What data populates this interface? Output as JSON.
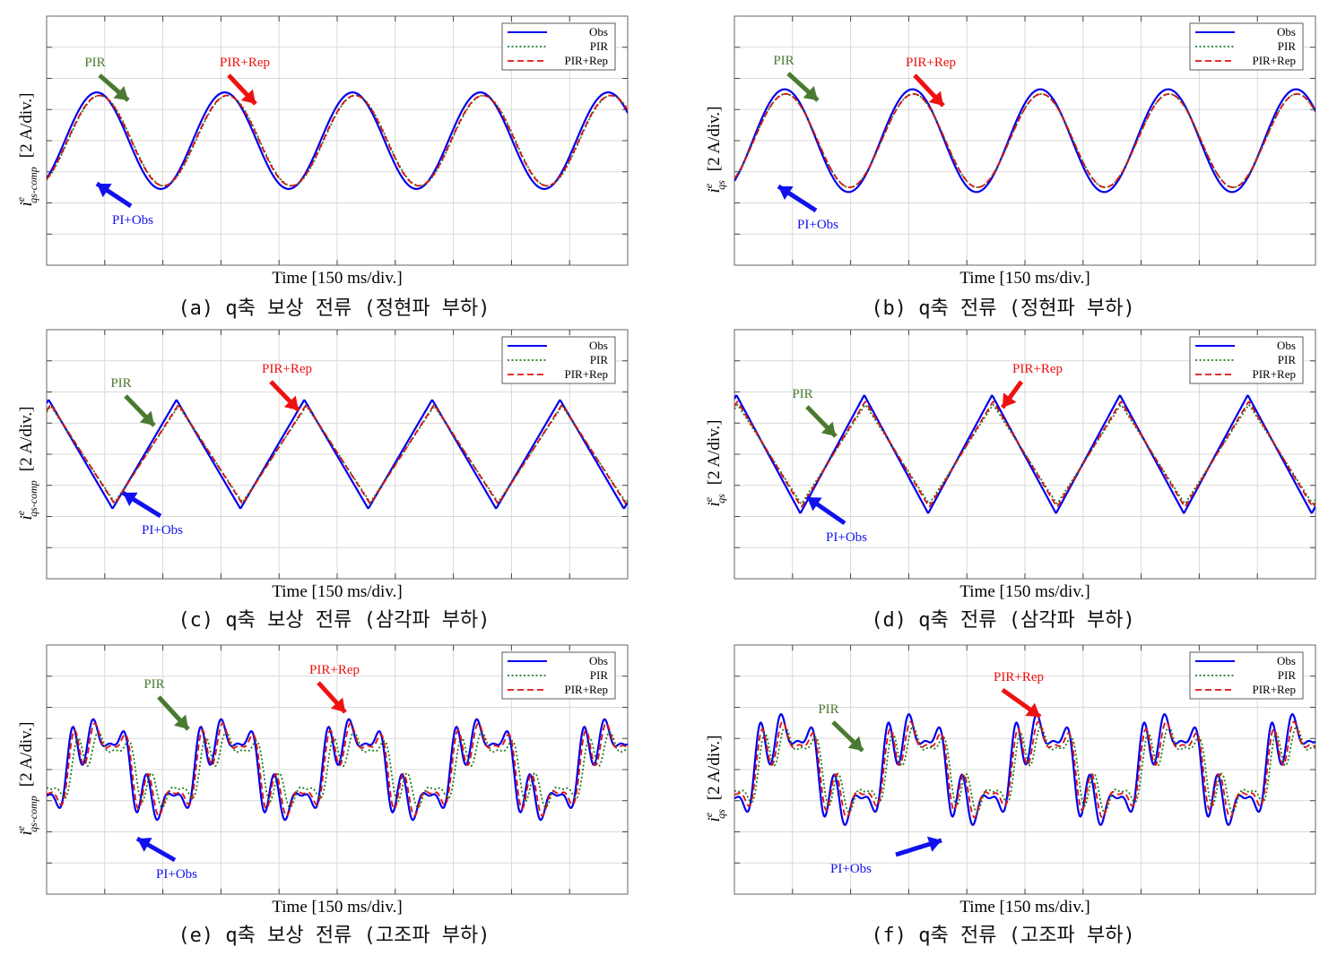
{
  "chart_data": [
    {
      "id": "a",
      "type": "line",
      "waveform": "sine",
      "caption": "(a) q축 보상 전류 (정현파 부하)",
      "xlabel": "Time [150 ms/div.]",
      "ylabel_main": "i",
      "ylabel_sup": "e",
      "ylabel_sub": "qs-comp",
      "ylabel_unit": "[2 A/div.]",
      "xlim": [
        0,
        10
      ],
      "ylim": [
        -4,
        4
      ],
      "grid": true,
      "legend_position": "top-right",
      "legend": [
        "Obs",
        "PIR",
        "PIR+Rep"
      ],
      "annotations": {
        "pir": "PIR",
        "rep": "PIR+Rep",
        "obs": "PI+Obs"
      },
      "series": [
        {
          "name": "Obs",
          "style": "solid",
          "color": "#0000ee",
          "amplitude": 1.55,
          "phase": 0.0
        },
        {
          "name": "PIR",
          "style": "dotted",
          "color": "#1e7d1e",
          "amplitude": 1.45,
          "phase": -0.15
        },
        {
          "name": "PIR+Rep",
          "style": "dashed",
          "color": "#e01010",
          "amplitude": 1.45,
          "phase": -0.12
        }
      ],
      "period_div": 2.2
    },
    {
      "id": "b",
      "type": "line",
      "waveform": "sine",
      "caption": "(b) q축 전류 (정현파 부하)",
      "xlabel": "Time [150 ms/div.]",
      "ylabel_main": "i",
      "ylabel_sup": "e",
      "ylabel_sub": "qs",
      "ylabel_unit": "[2 A/div.]",
      "xlim": [
        0,
        10
      ],
      "ylim": [
        -4,
        4
      ],
      "grid": true,
      "legend_position": "top-right",
      "legend": [
        "Obs",
        "PIR",
        "PIR+Rep"
      ],
      "annotations": {
        "pir": "PIR",
        "rep": "PIR+Rep",
        "obs": "PI+Obs"
      },
      "series": [
        {
          "name": "Obs",
          "style": "solid",
          "color": "#0000ee",
          "amplitude": 1.65,
          "phase": 0.0
        },
        {
          "name": "PIR",
          "style": "dotted",
          "color": "#1e7d1e",
          "amplitude": 1.5,
          "phase": -0.05
        },
        {
          "name": "PIR+Rep",
          "style": "dashed",
          "color": "#e01010",
          "amplitude": 1.5,
          "phase": -0.05
        }
      ],
      "period_div": 2.2
    },
    {
      "id": "c",
      "type": "line",
      "waveform": "triangle",
      "caption": "(c) q축 보상 전류 (삼각파 부하)",
      "xlabel": "Time [150 ms/div.]",
      "ylabel_main": "i",
      "ylabel_sup": "e",
      "ylabel_sub": "qs-comp",
      "ylabel_unit": "[2 A/div.]",
      "xlim": [
        0,
        10
      ],
      "ylim": [
        -4,
        4
      ],
      "grid": true,
      "legend_position": "top-right",
      "legend": [
        "Obs",
        "PIR",
        "PIR+Rep"
      ],
      "annotations": {
        "pir": "PIR",
        "rep": "PIR+Rep",
        "obs": "PI+Obs"
      },
      "series": [
        {
          "name": "Obs",
          "style": "solid",
          "color": "#0000ee",
          "amplitude": 1.75,
          "phase": 0.0
        },
        {
          "name": "PIR",
          "style": "dotted",
          "color": "#1e7d1e",
          "amplitude": 1.55,
          "phase": -0.1
        },
        {
          "name": "PIR+Rep",
          "style": "dashed",
          "color": "#e01010",
          "amplitude": 1.6,
          "phase": -0.1
        }
      ],
      "period_div": 2.2
    },
    {
      "id": "d",
      "type": "line",
      "waveform": "triangle",
      "caption": "(d) q축 전류 (삼각파 부하)",
      "xlabel": "Time [150 ms/div.]",
      "ylabel_main": "i",
      "ylabel_sup": "e",
      "ylabel_sub": "qs",
      "ylabel_unit": "[2 A/div.]",
      "xlim": [
        0,
        10
      ],
      "ylim": [
        -4,
        4
      ],
      "grid": true,
      "legend_position": "top-right",
      "legend": [
        "Obs",
        "PIR",
        "PIR+Rep"
      ],
      "annotations": {
        "pir": "PIR",
        "rep": "PIR+Rep",
        "obs": "PI+Obs"
      },
      "series": [
        {
          "name": "Obs",
          "style": "solid",
          "color": "#0000ee",
          "amplitude": 1.9,
          "phase": 0.0
        },
        {
          "name": "PIR",
          "style": "dotted",
          "color": "#1e7d1e",
          "amplitude": 1.6,
          "phase": -0.05
        },
        {
          "name": "PIR+Rep",
          "style": "dashed",
          "color": "#e01010",
          "amplitude": 1.7,
          "phase": -0.05
        }
      ],
      "period_div": 2.2
    },
    {
      "id": "e",
      "type": "line",
      "waveform": "harmonic",
      "caption": "(e) q축 보상 전류 (고조파 부하)",
      "xlabel": "Time [150 ms/div.]",
      "ylabel_main": "i",
      "ylabel_sup": "e",
      "ylabel_sub": "qs-comp",
      "ylabel_unit": "[2 A/div.]",
      "xlim": [
        0,
        10
      ],
      "ylim": [
        -4,
        4
      ],
      "grid": true,
      "legend_position": "top-right",
      "legend": [
        "Obs",
        "PIR",
        "PIR+Rep"
      ],
      "annotations": {
        "pir": "PIR",
        "rep": "PIR+Rep",
        "obs": "PI+Obs"
      },
      "series": [
        {
          "name": "Obs",
          "style": "solid",
          "color": "#0000ee",
          "amplitude": 1.0,
          "phase": 0.0
        },
        {
          "name": "PIR",
          "style": "dotted",
          "color": "#1e7d1e",
          "amplitude": 0.75,
          "phase": -0.25
        },
        {
          "name": "PIR+Rep",
          "style": "dashed",
          "color": "#e01010",
          "amplitude": 0.92,
          "phase": -0.08
        }
      ],
      "period_div": 2.2
    },
    {
      "id": "f",
      "type": "line",
      "waveform": "harmonic",
      "caption": "(f) q축 전류 (고조파 부하)",
      "xlabel": "Time [150 ms/div.]",
      "ylabel_main": "i",
      "ylabel_sup": "e",
      "ylabel_sub": "qs",
      "ylabel_unit": "[2 A/div.]",
      "xlim": [
        0,
        10
      ],
      "ylim": [
        -4,
        4
      ],
      "grid": true,
      "legend_position": "top-right",
      "legend": [
        "Obs",
        "PIR",
        "PIR+Rep"
      ],
      "annotations": {
        "pir": "PIR",
        "rep": "PIR+Rep",
        "obs": "PI+Obs"
      },
      "series": [
        {
          "name": "Obs",
          "style": "solid",
          "color": "#0000ee",
          "amplitude": 1.1,
          "phase": 0.0
        },
        {
          "name": "PIR",
          "style": "dotted",
          "color": "#1e7d1e",
          "amplitude": 0.85,
          "phase": -0.2
        },
        {
          "name": "PIR+Rep",
          "style": "dashed",
          "color": "#e01010",
          "amplitude": 0.95,
          "phase": -0.08
        }
      ],
      "period_div": 2.2
    }
  ]
}
